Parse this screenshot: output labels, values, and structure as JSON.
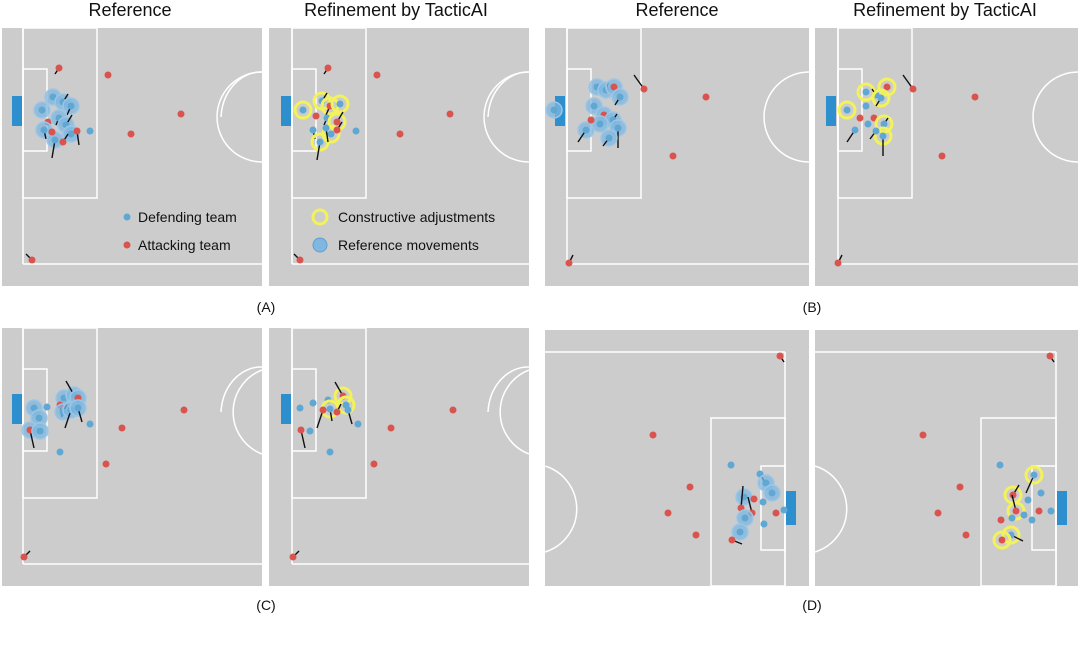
{
  "column_titles": {
    "reference": "Reference",
    "refinement": "Refinement by TacticAI"
  },
  "panel_labels": {
    "a": "(A)",
    "b": "(B)",
    "c": "(C)",
    "d": "(D)"
  },
  "legend": {
    "defending": "Defending team",
    "attacking": "Attacking team",
    "constructive": "Constructive adjustments",
    "reference_movements": "Reference movements"
  },
  "colors": {
    "pitch": "#cccccc",
    "lines": "#ffffff",
    "goal": "#2e8fcf",
    "defender": "#5fa8d3",
    "attacker": "#d9544f",
    "reference_glow": "#7fb7e0",
    "constructive_glow": "#f2f25a"
  }
}
